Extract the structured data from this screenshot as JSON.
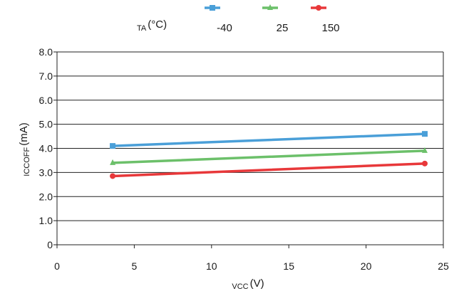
{
  "chart_data": {
    "type": "line",
    "x": [
      3.6,
      23.8
    ],
    "series": [
      {
        "name": "-40",
        "values": [
          4.1,
          4.6
        ],
        "color": "#4a9fd8",
        "marker": "square"
      },
      {
        "name": "25",
        "values": [
          3.4,
          3.9
        ],
        "color": "#6cc06a",
        "marker": "triangle"
      },
      {
        "name": "150",
        "values": [
          2.85,
          3.37
        ],
        "color": "#e8383a",
        "marker": "circle"
      }
    ],
    "legend": {
      "title_main": "TA",
      "title_unit": "(°C)",
      "placement": "top-center"
    },
    "xlabel": {
      "main": "VCC",
      "unit": "(V)"
    },
    "ylabel": {
      "main": "ICCOFF",
      "unit": "(mA)"
    },
    "xlim": [
      0,
      25
    ],
    "ylim": [
      0,
      8
    ],
    "xticks": [
      "0",
      "5",
      "10",
      "15",
      "20",
      "25"
    ],
    "yticks": [
      "0",
      "1.0",
      "2.0",
      "3.0",
      "4.0",
      "5.0",
      "6.0",
      "7.0",
      "8.0"
    ],
    "grid": "horizontal"
  }
}
